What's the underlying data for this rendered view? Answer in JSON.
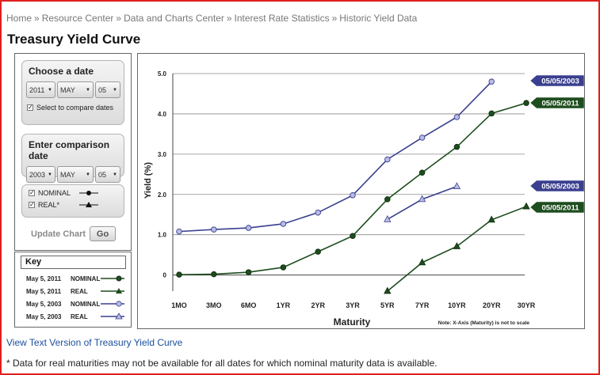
{
  "breadcrumb": {
    "items": [
      "Home",
      "Resource Center",
      "Data and Charts Center",
      "Interest Rate Statistics",
      "Historic Yield Data"
    ],
    "separator": "»"
  },
  "page_title": "Treasury Yield Curve",
  "choose_date": {
    "title": "Choose a date",
    "year": "2011",
    "month": "MAY",
    "day": "05",
    "compare_label": "Select to compare dates",
    "compare_checked": true
  },
  "comparison_date": {
    "title": "Enter comparison date",
    "year": "2003",
    "month": "MAY",
    "day": "05"
  },
  "series_toggles": [
    {
      "label": "NOMINAL",
      "checked": true
    },
    {
      "label": "REAL*",
      "checked": true
    }
  ],
  "update_chart_label": "Update Chart",
  "go_label": "Go",
  "key": {
    "title": "Key",
    "rows": [
      {
        "date": "May 5, 2011",
        "type": "NOMINAL",
        "color": "#1e4d1e",
        "marker": "circle"
      },
      {
        "date": "May 5, 2011",
        "type": "REAL",
        "color": "#1e4d1e",
        "marker": "triangle"
      },
      {
        "date": "May 5, 2003",
        "type": "NOMINAL",
        "color": "#3a3f8f",
        "marker": "circle"
      },
      {
        "date": "May 5, 2003",
        "type": "REAL",
        "color": "#3a3f8f",
        "marker": "triangle"
      }
    ]
  },
  "chart_data": {
    "type": "line",
    "xlabel": "Maturity",
    "ylabel": "Yield  (%)",
    "ylim": [
      -0.4,
      5.0
    ],
    "y_ticks": [
      "5.0",
      "4.0",
      "3.0",
      "2.0",
      "1.0",
      "0"
    ],
    "x": [
      "1MO",
      "3MO",
      "6MO",
      "1YR",
      "2YR",
      "3YR",
      "5YR",
      "7YR",
      "10YR",
      "20YR",
      "30YR"
    ],
    "grid": "horizontal",
    "scale_note": "Note: X-Axis (Maturity) is not to scale",
    "series": [
      {
        "date_label": "05/05/2003",
        "kind": "nominal",
        "color": "#3a3f8f",
        "values": [
          1.08,
          1.13,
          1.17,
          1.27,
          1.55,
          1.98,
          2.87,
          3.41,
          3.92,
          4.8,
          null
        ]
      },
      {
        "date_label": "05/05/2011",
        "kind": "nominal",
        "color": "#1e4d1e",
        "values": [
          0.01,
          0.02,
          0.07,
          0.19,
          0.58,
          0.97,
          1.88,
          2.54,
          3.18,
          4.01,
          4.27
        ]
      },
      {
        "date_label": "05/05/2003",
        "kind": "real",
        "color": "#3a3f8f",
        "values": [
          null,
          null,
          null,
          null,
          null,
          null,
          1.38,
          1.88,
          2.2,
          null,
          null
        ]
      },
      {
        "date_label": "05/05/2011",
        "kind": "real",
        "color": "#1e4d1e",
        "values": [
          null,
          null,
          null,
          null,
          null,
          null,
          -0.4,
          0.31,
          0.71,
          1.37,
          1.7
        ]
      }
    ]
  },
  "text_version_link": "View Text Version of Treasury Yield Curve",
  "footnote": "* Data for real maturities may not be available for all dates for which nominal maturity data is available."
}
